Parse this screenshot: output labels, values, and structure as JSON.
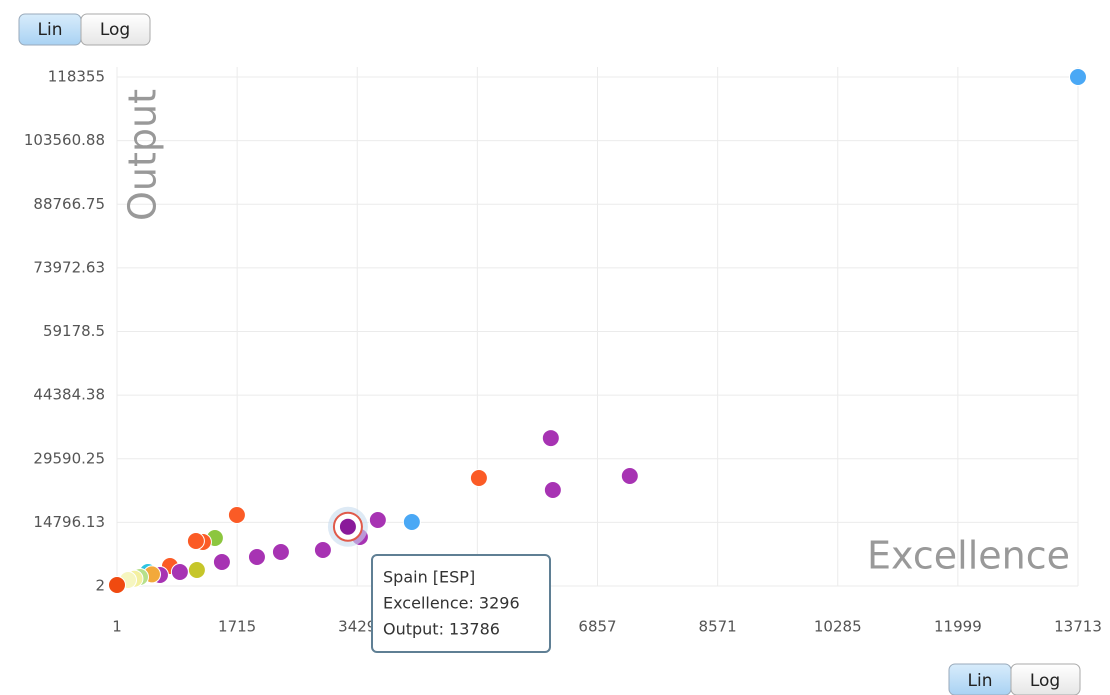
{
  "chart_data": {
    "type": "scatter",
    "x_label": "Excellence",
    "y_label": "Output",
    "xlim": [
      1,
      13713
    ],
    "xticks": [
      1,
      1715,
      3429,
      5143,
      6857,
      8571,
      10285,
      11999,
      13713
    ],
    "ylim": [
      2,
      118355
    ],
    "yticks": [
      2,
      14796.13,
      29590.25,
      44384.38,
      59178.5,
      73972.63,
      88766.75,
      103560.88,
      118355
    ],
    "grid": true,
    "x": [
      13713,
      6191,
      6220,
      7318,
      5165,
      4208,
      3723,
      3467,
      3296,
      2939,
      2340,
      1998,
      1498,
      1712,
      1398,
      1227,
      1127,
      1141,
      757,
      898,
      614,
      443,
      500,
      329,
      250,
      158,
      1
    ],
    "values": [
      118355,
      34400,
      22325,
      25580,
      25116,
      14886,
      15350,
      11395,
      13786,
      8372,
      7907,
      6745,
      5582,
      16512,
      11163,
      10233,
      10465,
      3722,
      4651,
      3257,
      2560,
      3257,
      2700,
      2095,
      1700,
      1397,
      234
    ],
    "colors": [
      "#4aa8f5",
      "#a733b3",
      "#a733b3",
      "#a733b3",
      "#fb5b26",
      "#4aa8f5",
      "#a733b3",
      "#a733b3",
      "#8a1a9a",
      "#a733b3",
      "#a733b3",
      "#a733b3",
      "#a733b3",
      "#fb5b26",
      "#8cc63f",
      "#fb5b26",
      "#fb5b26",
      "#c6c62a",
      "#fb5b26",
      "#a733b3",
      "#a733b3",
      "#2fc4e0",
      "#f2a93b",
      "#b6e08a",
      "#f4f0a0",
      "#f6f6c0",
      "#f04a10"
    ],
    "selected": 8,
    "tooltip": {
      "title": "Spain [ESP]",
      "lines": [
        "Excellence: 3296",
        "Output: 13786"
      ]
    },
    "scale_buttons": [
      "Lin",
      "Log"
    ]
  }
}
